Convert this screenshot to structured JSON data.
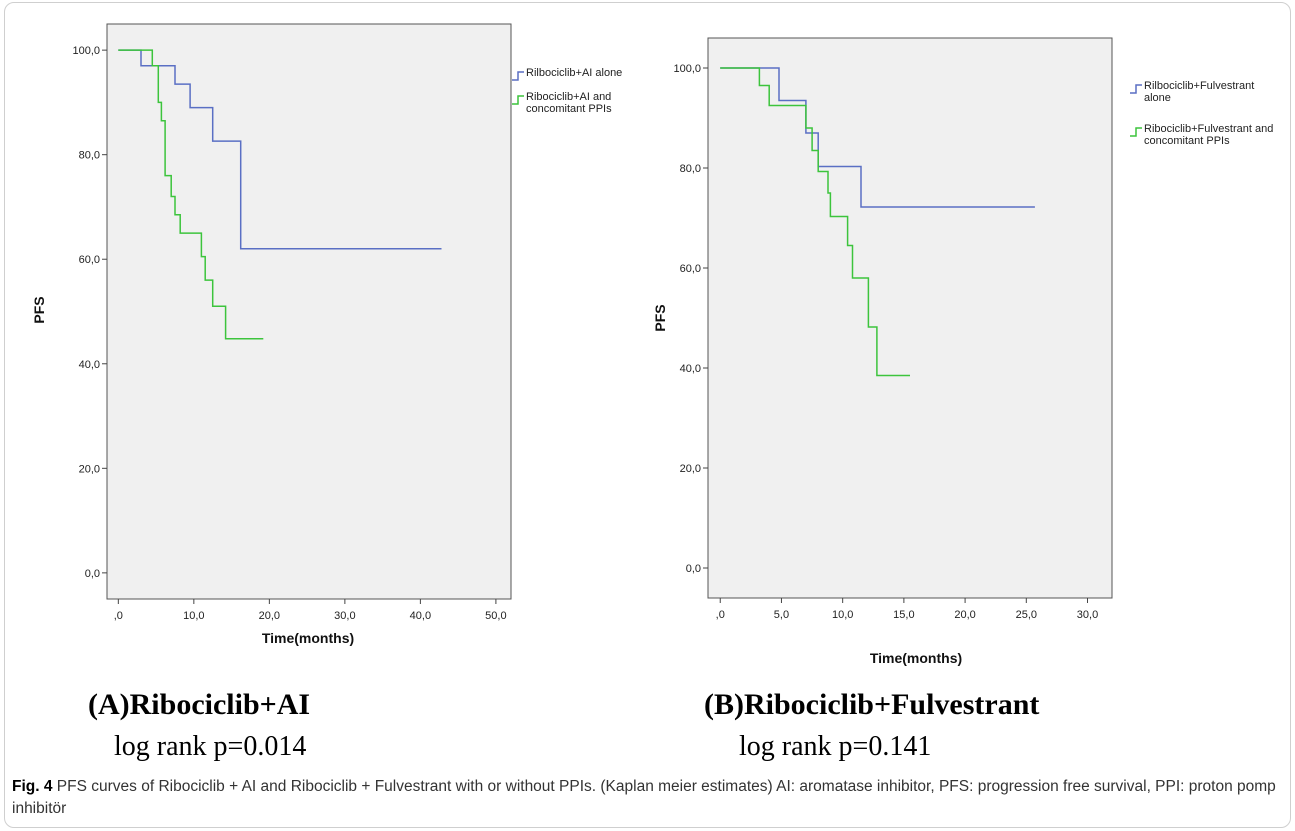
{
  "chart_data": [
    {
      "type": "line",
      "step": true,
      "panel": "A",
      "subtitle": "(A)Ribociclib+AI",
      "stat": "log rank p=0.014",
      "xlabel": "Time(months)",
      "ylabel": "PFS",
      "xlim": [
        -1.5,
        52
      ],
      "ylim": [
        -5,
        105
      ],
      "xticks": [
        0,
        10,
        20,
        30,
        40,
        50
      ],
      "xtick_labels": [
        ",0",
        "10,0",
        "20,0",
        "30,0",
        "40,0",
        "50,0"
      ],
      "yticks": [
        0,
        20,
        40,
        60,
        80,
        100
      ],
      "ytick_labels": [
        "0,0",
        "20,0",
        "40,0",
        "60,0",
        "80,0",
        "100,0"
      ],
      "grid": false,
      "legend_position": "right",
      "series": [
        {
          "name": "Rilbociclib+AI alone",
          "color": "#5a6fc4",
          "points": [
            [
              0,
              100
            ],
            [
              3,
              100
            ],
            [
              3,
              97
            ],
            [
              7.5,
              97
            ],
            [
              7.5,
              93.5
            ],
            [
              9.5,
              93.5
            ],
            [
              9.5,
              89
            ],
            [
              12.5,
              89
            ],
            [
              12.5,
              82.6
            ],
            [
              16.2,
              82.6
            ],
            [
              16.2,
              62
            ],
            [
              42.8,
              62
            ]
          ]
        },
        {
          "name": "Ribociclib+AI and concomitant PPIs",
          "color": "#3cc43c",
          "points": [
            [
              0,
              100
            ],
            [
              4.5,
              100
            ],
            [
              4.5,
              97
            ],
            [
              5.3,
              97
            ],
            [
              5.3,
              90
            ],
            [
              5.7,
              90
            ],
            [
              5.7,
              86.5
            ],
            [
              6.2,
              86.5
            ],
            [
              6.2,
              76
            ],
            [
              7.0,
              76
            ],
            [
              7.0,
              72
            ],
            [
              7.5,
              72
            ],
            [
              7.5,
              68.5
            ],
            [
              8.2,
              68.5
            ],
            [
              8.2,
              65
            ],
            [
              11.0,
              65
            ],
            [
              11.0,
              60.5
            ],
            [
              11.5,
              60.5
            ],
            [
              11.5,
              56
            ],
            [
              12.5,
              56
            ],
            [
              12.5,
              51
            ],
            [
              14.2,
              51
            ],
            [
              14.2,
              44.8
            ],
            [
              19.2,
              44.8
            ]
          ]
        }
      ]
    },
    {
      "type": "line",
      "step": true,
      "panel": "B",
      "subtitle": "(B)Ribociclib+Fulvestrant",
      "stat": "log rank p=0.141",
      "xlabel": "Time(months)",
      "ylabel": "PFS",
      "xlim": [
        -1,
        32
      ],
      "ylim": [
        -6,
        106
      ],
      "xticks": [
        0,
        5,
        10,
        15,
        20,
        25,
        30
      ],
      "xtick_labels": [
        ",0",
        "5,0",
        "10,0",
        "15,0",
        "20,0",
        "25,0",
        "30,0"
      ],
      "yticks": [
        0,
        20,
        40,
        60,
        80,
        100
      ],
      "ytick_labels": [
        "0,0",
        "20,0",
        "40,0",
        "60,0",
        "80,0",
        "100,0"
      ],
      "grid": false,
      "legend_position": "right",
      "series": [
        {
          "name": "Rilbociclib+Fulvestrant alone",
          "color": "#5a6fc4",
          "points": [
            [
              0,
              100
            ],
            [
              4.8,
              100
            ],
            [
              4.8,
              93.5
            ],
            [
              7.0,
              93.5
            ],
            [
              7.0,
              87
            ],
            [
              8.0,
              87
            ],
            [
              8.0,
              80.3
            ],
            [
              11.5,
              80.3
            ],
            [
              11.5,
              72.2
            ],
            [
              25.7,
              72.2
            ]
          ]
        },
        {
          "name": "Ribociclib+Fulvestrant and concomitant PPIs",
          "color": "#3cc43c",
          "points": [
            [
              0,
              100
            ],
            [
              3.2,
              100
            ],
            [
              3.2,
              96.5
            ],
            [
              4.0,
              96.5
            ],
            [
              4.0,
              92.5
            ],
            [
              7.0,
              92.5
            ],
            [
              7.0,
              88
            ],
            [
              7.5,
              88
            ],
            [
              7.5,
              83.5
            ],
            [
              8.0,
              83.5
            ],
            [
              8.0,
              79.3
            ],
            [
              8.8,
              79.3
            ],
            [
              8.8,
              75
            ],
            [
              9.0,
              75
            ],
            [
              9.0,
              70.3
            ],
            [
              10.4,
              70.3
            ],
            [
              10.4,
              64.5
            ],
            [
              10.8,
              64.5
            ],
            [
              10.8,
              58
            ],
            [
              12.1,
              58
            ],
            [
              12.1,
              48.2
            ],
            [
              12.8,
              48.2
            ],
            [
              12.8,
              38.5
            ],
            [
              15.5,
              38.5
            ]
          ]
        }
      ]
    }
  ],
  "caption": {
    "label": "Fig. 4",
    "text": "PFS curves of Ribociclib + AI and Ribociclib + Fulvestrant with or without PPIs. (Kaplan meier estimates) AI: aromatase inhibitor, PFS: progression free survival, PPI: proton pomp inhibitör"
  }
}
